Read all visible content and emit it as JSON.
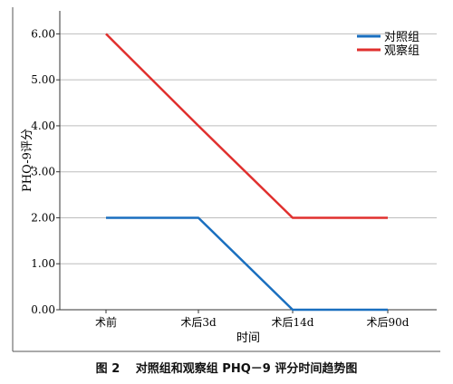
{
  "chart_data": {
    "type": "line",
    "categories": [
      "术前",
      "术后3d",
      "术后14d",
      "术后90d"
    ],
    "series": [
      {
        "name": "对照组",
        "values": [
          2.0,
          2.0,
          0.0,
          0.0
        ],
        "color": "#1a6fbf"
      },
      {
        "name": "观察组",
        "values": [
          6.0,
          4.0,
          2.0,
          2.0
        ],
        "color": "#e0302e"
      }
    ],
    "title": "",
    "xlabel": "时间",
    "ylabel": "PHQ-9评分",
    "ylim": [
      0,
      6.5
    ],
    "yticks": [
      "0.00",
      "1.00",
      "2.00",
      "3.00",
      "4.00",
      "5.00",
      "6.00"
    ],
    "grid": true,
    "legend_position": "top-right"
  },
  "caption": "图 2　 对照组和观察组 PHQ－9 评分时间趋势图"
}
